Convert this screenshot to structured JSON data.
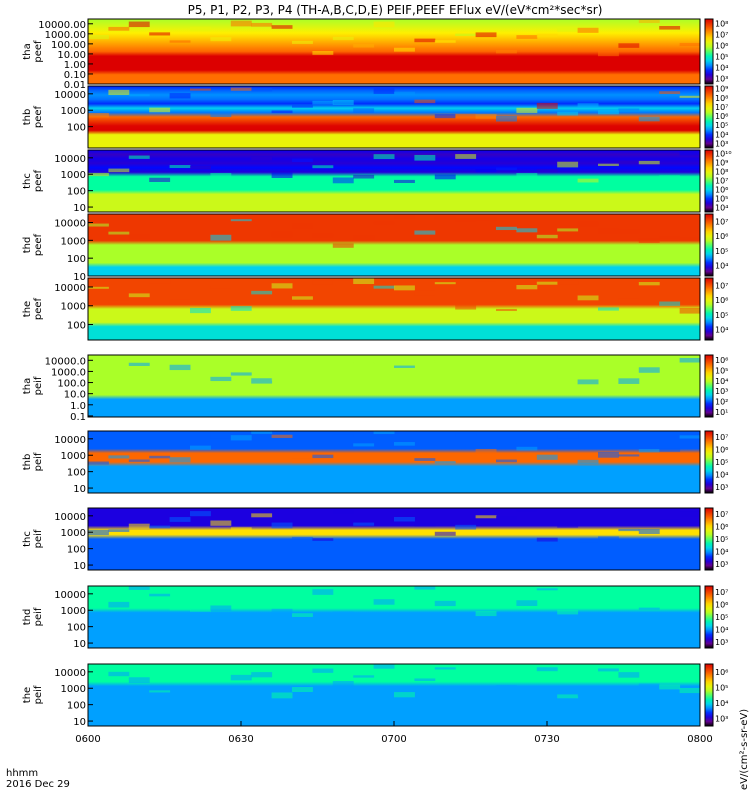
{
  "title": "P5, P1, P2, P3, P4 (TH-A,B,C,D,E) PEIF,PEEF EFlux eV/(eV*cm²*sec*sr)",
  "time_axis": {
    "label_line1": "hhmm",
    "label_line2": "2016 Dec 29",
    "ticks": [
      "0600",
      "0630",
      "0700",
      "0730",
      "0800"
    ],
    "range_minutes": [
      0,
      120
    ]
  },
  "colorbar_label": "eV/(cm²-s-sr-eV)",
  "chart_data": [
    {
      "type": "heatmap",
      "label": "tha peef",
      "yticks": [
        "10000.00",
        "1000.00",
        "100.00",
        "10.00",
        "1.00",
        "0.10",
        "0.01"
      ],
      "ytick_values": [
        10000,
        1000,
        100,
        10,
        1,
        0.1,
        0.01
      ],
      "ylim": [
        0.01,
        30000
      ],
      "cb_ticks": [
        "10⁸",
        "10⁷",
        "10⁶",
        "10⁵",
        "10⁴",
        "10³"
      ],
      "cb_values": [
        8,
        7,
        6,
        5,
        4,
        3
      ],
      "cb_range": [
        2.5,
        8.4
      ]
    },
    {
      "type": "heatmap",
      "label": "thb peef",
      "yticks": [
        "10000",
        "1000",
        "100"
      ],
      "ytick_values": [
        10000,
        1000,
        100
      ],
      "ylim": [
        5,
        30000
      ],
      "cb_ticks": [
        "10⁹",
        "10⁸",
        "10⁷",
        "10⁶",
        "10⁵",
        "10⁴",
        "10³"
      ],
      "cb_values": [
        9,
        8,
        7,
        6,
        5,
        4,
        3
      ],
      "cb_range": [
        2.5,
        9.3
      ]
    },
    {
      "type": "heatmap",
      "label": "thc peef",
      "yticks": [
        "10000",
        "1000",
        "100",
        "10"
      ],
      "ytick_values": [
        10000,
        1000,
        100,
        10
      ],
      "ylim": [
        5,
        30000
      ],
      "cb_ticks": [
        "10¹⁰",
        "10⁹",
        "10⁸",
        "10⁷",
        "10⁶",
        "10⁵",
        "10⁴"
      ],
      "cb_values": [
        10,
        9,
        8,
        7,
        6,
        5,
        4
      ],
      "cb_range": [
        3.5,
        10.4
      ]
    },
    {
      "type": "heatmap",
      "label": "thd peef",
      "yticks": [
        "10000",
        "1000",
        "100",
        "10"
      ],
      "ytick_values": [
        10000,
        1000,
        100,
        10
      ],
      "ylim": [
        10,
        30000
      ],
      "cb_ticks": [
        "10⁷",
        "10⁶",
        "10⁵",
        "10⁴"
      ],
      "cb_values": [
        7,
        6,
        5,
        4
      ],
      "cb_range": [
        3.3,
        7.5
      ]
    },
    {
      "type": "heatmap",
      "label": "the peef",
      "yticks": [
        "10000",
        "1000",
        "100"
      ],
      "ytick_values": [
        10000,
        1000,
        100
      ],
      "ylim": [
        15,
        30000
      ],
      "cb_ticks": [
        "10⁷",
        "10⁶",
        "10⁵",
        "10⁴"
      ],
      "cb_values": [
        7,
        6,
        5,
        4
      ],
      "cb_range": [
        3.3,
        7.5
      ]
    },
    {
      "type": "heatmap",
      "label": "tha peif",
      "yticks": [
        "10000.0",
        "1000.0",
        "100.0",
        "10.0",
        "1.0",
        "0.1"
      ],
      "ytick_values": [
        10000,
        1000,
        100,
        10,
        1,
        0.1
      ],
      "ylim": [
        0.08,
        30000
      ],
      "cb_ticks": [
        "10⁶",
        "10⁵",
        "10⁴",
        "10³",
        "10²",
        "10¹"
      ],
      "cb_values": [
        6,
        5,
        4,
        3,
        2,
        1
      ],
      "cb_range": [
        0.5,
        6.5
      ]
    },
    {
      "type": "heatmap",
      "label": "thb peif",
      "yticks": [
        "10000",
        "1000",
        "100",
        "10"
      ],
      "ytick_values": [
        10000,
        1000,
        100,
        10
      ],
      "ylim": [
        5,
        30000
      ],
      "cb_ticks": [
        "10⁷",
        "10⁶",
        "10⁵",
        "10⁴",
        "10³"
      ],
      "cb_values": [
        7,
        6,
        5,
        4,
        3
      ],
      "cb_range": [
        2.5,
        7.5
      ]
    },
    {
      "type": "heatmap",
      "label": "thc peif",
      "yticks": [
        "10000",
        "1000",
        "100",
        "10"
      ],
      "ytick_values": [
        10000,
        1000,
        100,
        10
      ],
      "ylim": [
        5,
        30000
      ],
      "cb_ticks": [
        "10⁷",
        "10⁶",
        "10⁵",
        "10⁴",
        "10³"
      ],
      "cb_values": [
        7,
        6,
        5,
        4,
        3
      ],
      "cb_range": [
        2.5,
        7.5
      ]
    },
    {
      "type": "heatmap",
      "label": "thd peif",
      "yticks": [
        "10000",
        "1000",
        "100",
        "10"
      ],
      "ytick_values": [
        10000,
        1000,
        100,
        10
      ],
      "ylim": [
        5,
        30000
      ],
      "cb_ticks": [
        "10⁷",
        "10⁶",
        "10⁵",
        "10⁴",
        "10³"
      ],
      "cb_values": [
        7,
        6,
        5,
        4,
        3
      ],
      "cb_range": [
        2.5,
        7.5
      ]
    },
    {
      "type": "heatmap",
      "label": "the peif",
      "yticks": [
        "10000",
        "1000",
        "100",
        "10"
      ],
      "ytick_values": [
        10000,
        1000,
        100,
        10
      ],
      "ylim": [
        5,
        30000
      ],
      "cb_ticks": [
        "10⁶",
        "10⁵",
        "10⁴",
        "10³"
      ],
      "cb_values": [
        6,
        5,
        4,
        3
      ],
      "cb_range": [
        2.5,
        6.5
      ]
    }
  ]
}
